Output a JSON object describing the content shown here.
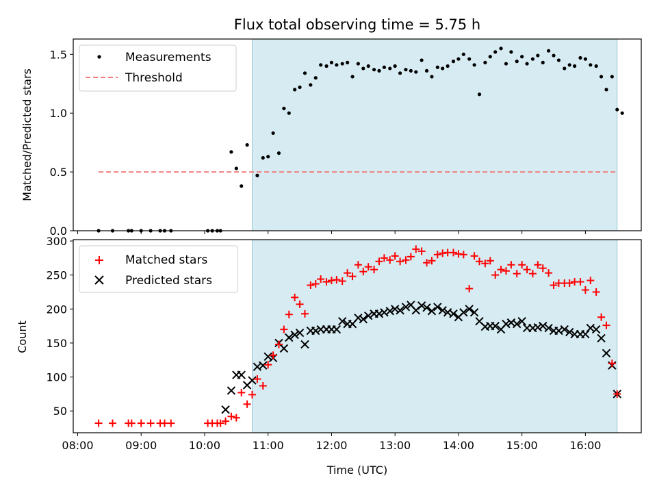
{
  "chart_data": [
    {
      "type": "scatter",
      "title": "Flux total observing time = 5.75 h",
      "ylabel": "Matched/Predicted stars",
      "xlabel": "",
      "ylim": [
        0,
        1.63
      ],
      "yticks": [
        0.0,
        0.5,
        1.0,
        1.5
      ],
      "ytick_labels": [
        "0.0",
        "0.5",
        "1.0",
        "1.5"
      ],
      "xlim_hours": [
        7.93,
        16.88
      ],
      "xtick_hours": [
        8,
        9,
        10,
        11,
        12,
        13,
        14,
        15,
        16
      ],
      "shaded_interval_hours": [
        10.75,
        16.5
      ],
      "legend": {
        "placement": "top-left",
        "entries": [
          "Measurements",
          "Threshold"
        ]
      },
      "threshold": {
        "name": "Threshold",
        "value": 0.5,
        "x_range_hours": [
          8.33,
          16.5
        ],
        "color": "#f08080"
      },
      "series": [
        {
          "name": "Measurements",
          "color": "#000000",
          "points": [
            [
              8.33,
              0.0
            ],
            [
              8.55,
              0.0
            ],
            [
              8.8,
              0.0
            ],
            [
              8.85,
              0.0
            ],
            [
              9.0,
              0.0
            ],
            [
              9.15,
              0.0
            ],
            [
              9.3,
              0.0
            ],
            [
              9.37,
              0.0
            ],
            [
              9.47,
              0.0
            ],
            [
              10.05,
              0.0
            ],
            [
              10.12,
              0.0
            ],
            [
              10.2,
              0.0
            ],
            [
              10.25,
              0.0
            ],
            [
              10.42,
              0.67
            ],
            [
              10.5,
              0.53
            ],
            [
              10.58,
              0.38
            ],
            [
              10.67,
              0.73
            ],
            [
              10.83,
              0.47
            ],
            [
              10.92,
              0.62
            ],
            [
              11.0,
              0.63
            ],
            [
              11.08,
              0.83
            ],
            [
              11.17,
              0.66
            ],
            [
              11.25,
              1.04
            ],
            [
              11.33,
              1.0
            ],
            [
              11.42,
              1.2
            ],
            [
              11.5,
              1.22
            ],
            [
              11.58,
              1.34
            ],
            [
              11.67,
              1.24
            ],
            [
              11.75,
              1.3
            ],
            [
              11.83,
              1.41
            ],
            [
              11.92,
              1.4
            ],
            [
              12.0,
              1.43
            ],
            [
              12.08,
              1.41
            ],
            [
              12.17,
              1.42
            ],
            [
              12.25,
              1.43
            ],
            [
              12.33,
              1.31
            ],
            [
              12.42,
              1.42
            ],
            [
              12.5,
              1.38
            ],
            [
              12.58,
              1.4
            ],
            [
              12.67,
              1.37
            ],
            [
              12.75,
              1.36
            ],
            [
              12.83,
              1.39
            ],
            [
              12.92,
              1.38
            ],
            [
              13.0,
              1.4
            ],
            [
              13.08,
              1.34
            ],
            [
              13.17,
              1.37
            ],
            [
              13.25,
              1.36
            ],
            [
              13.33,
              1.35
            ],
            [
              13.42,
              1.45
            ],
            [
              13.5,
              1.36
            ],
            [
              13.58,
              1.31
            ],
            [
              13.67,
              1.39
            ],
            [
              13.75,
              1.38
            ],
            [
              13.83,
              1.4
            ],
            [
              13.92,
              1.44
            ],
            [
              14.0,
              1.46
            ],
            [
              14.08,
              1.5
            ],
            [
              14.17,
              1.46
            ],
            [
              14.25,
              1.41
            ],
            [
              14.33,
              1.16
            ],
            [
              14.42,
              1.43
            ],
            [
              14.5,
              1.48
            ],
            [
              14.58,
              1.52
            ],
            [
              14.67,
              1.55
            ],
            [
              14.75,
              1.42
            ],
            [
              14.83,
              1.52
            ],
            [
              14.92,
              1.44
            ],
            [
              15.0,
              1.48
            ],
            [
              15.08,
              1.42
            ],
            [
              15.17,
              1.46
            ],
            [
              15.25,
              1.49
            ],
            [
              15.33,
              1.43
            ],
            [
              15.42,
              1.53
            ],
            [
              15.5,
              1.49
            ],
            [
              15.58,
              1.45
            ],
            [
              15.67,
              1.38
            ],
            [
              15.75,
              1.41
            ],
            [
              15.83,
              1.4
            ],
            [
              15.92,
              1.47
            ],
            [
              16.0,
              1.46
            ],
            [
              16.08,
              1.41
            ],
            [
              16.17,
              1.4
            ],
            [
              16.25,
              1.31
            ],
            [
              16.33,
              1.2
            ],
            [
              16.42,
              1.31
            ],
            [
              16.5,
              1.03
            ],
            [
              16.58,
              1.0
            ]
          ]
        }
      ]
    },
    {
      "type": "scatter",
      "title": "",
      "xlabel": "Time (UTC)",
      "ylabel": "Count",
      "ylim": [
        18,
        302
      ],
      "yticks": [
        50,
        100,
        150,
        200,
        250,
        300
      ],
      "ytick_labels": [
        "50",
        "100",
        "150",
        "200",
        "250",
        "300"
      ],
      "xlim_hours": [
        7.93,
        16.88
      ],
      "xtick_hours": [
        8,
        9,
        10,
        11,
        12,
        13,
        14,
        15,
        16
      ],
      "xtick_labels": [
        "08:00",
        "09:00",
        "10:00",
        "11:00",
        "12:00",
        "13:00",
        "14:00",
        "15:00",
        "16:00"
      ],
      "shaded_interval_hours": [
        10.75,
        16.5
      ],
      "legend": {
        "placement": "top-left",
        "entries": [
          "Matched stars",
          "Predicted stars"
        ]
      },
      "series": [
        {
          "name": "Matched stars",
          "marker": "plus",
          "color": "#ff0000",
          "points": [
            [
              8.33,
              32
            ],
            [
              8.55,
              32
            ],
            [
              8.8,
              32
            ],
            [
              8.85,
              32
            ],
            [
              9.0,
              32
            ],
            [
              9.15,
              32
            ],
            [
              9.3,
              32
            ],
            [
              9.37,
              32
            ],
            [
              9.47,
              32
            ],
            [
              10.05,
              32
            ],
            [
              10.12,
              32
            ],
            [
              10.2,
              32
            ],
            [
              10.25,
              32
            ],
            [
              10.33,
              35
            ],
            [
              10.42,
              42
            ],
            [
              10.5,
              40
            ],
            [
              10.58,
              77
            ],
            [
              10.67,
              60
            ],
            [
              10.75,
              74
            ],
            [
              10.83,
              97
            ],
            [
              10.92,
              87
            ],
            [
              11.0,
              118
            ],
            [
              11.08,
              132
            ],
            [
              11.17,
              148
            ],
            [
              11.25,
              170
            ],
            [
              11.33,
              192
            ],
            [
              11.42,
              217
            ],
            [
              11.5,
              207
            ],
            [
              11.58,
              193
            ],
            [
              11.67,
              235
            ],
            [
              11.75,
              237
            ],
            [
              11.83,
              244
            ],
            [
              11.92,
              240
            ],
            [
              12.0,
              242
            ],
            [
              12.08,
              243
            ],
            [
              12.17,
              241
            ],
            [
              12.25,
              253
            ],
            [
              12.33,
              248
            ],
            [
              12.42,
              265
            ],
            [
              12.5,
              255
            ],
            [
              12.58,
              262
            ],
            [
              12.67,
              258
            ],
            [
              12.75,
              270
            ],
            [
              12.83,
              275
            ],
            [
              12.92,
              272
            ],
            [
              13.0,
              278
            ],
            [
              13.08,
              270
            ],
            [
              13.17,
              272
            ],
            [
              13.25,
              277
            ],
            [
              13.33,
              288
            ],
            [
              13.42,
              285
            ],
            [
              13.5,
              268
            ],
            [
              13.58,
              271
            ],
            [
              13.67,
              280
            ],
            [
              13.75,
              282
            ],
            [
              13.83,
              283
            ],
            [
              13.92,
              283
            ],
            [
              14.0,
              281
            ],
            [
              14.08,
              280
            ],
            [
              14.17,
              230
            ],
            [
              14.25,
              278
            ],
            [
              14.33,
              270
            ],
            [
              14.42,
              267
            ],
            [
              14.5,
              271
            ],
            [
              14.58,
              250
            ],
            [
              14.67,
              258
            ],
            [
              14.75,
              256
            ],
            [
              14.83,
              265
            ],
            [
              14.92,
              252
            ],
            [
              15.0,
              265
            ],
            [
              15.08,
              258
            ],
            [
              15.17,
              252
            ],
            [
              15.25,
              265
            ],
            [
              15.33,
              260
            ],
            [
              15.42,
              253
            ],
            [
              15.5,
              235
            ],
            [
              15.58,
              238
            ],
            [
              15.67,
              238
            ],
            [
              15.75,
              238
            ],
            [
              15.83,
              240
            ],
            [
              15.92,
              240
            ],
            [
              16.0,
              228
            ],
            [
              16.08,
              242
            ],
            [
              16.17,
              225
            ],
            [
              16.25,
              188
            ],
            [
              16.33,
              176
            ],
            [
              16.42,
              120
            ],
            [
              16.5,
              75
            ]
          ]
        },
        {
          "name": "Predicted stars",
          "marker": "x",
          "color": "#000000",
          "points": [
            [
              10.33,
              52
            ],
            [
              10.42,
              80
            ],
            [
              10.5,
              103
            ],
            [
              10.58,
              103
            ],
            [
              10.67,
              88
            ],
            [
              10.75,
              95
            ],
            [
              10.83,
              115
            ],
            [
              10.92,
              117
            ],
            [
              11.0,
              130
            ],
            [
              11.08,
              128
            ],
            [
              11.17,
              150
            ],
            [
              11.25,
              142
            ],
            [
              11.33,
              158
            ],
            [
              11.42,
              162
            ],
            [
              11.5,
              165
            ],
            [
              11.58,
              148
            ],
            [
              11.67,
              168
            ],
            [
              11.75,
              168
            ],
            [
              11.83,
              170
            ],
            [
              11.92,
              170
            ],
            [
              12.0,
              170
            ],
            [
              12.08,
              170
            ],
            [
              12.17,
              182
            ],
            [
              12.25,
              178
            ],
            [
              12.33,
              178
            ],
            [
              12.42,
              187
            ],
            [
              12.5,
              185
            ],
            [
              12.58,
              190
            ],
            [
              12.67,
              193
            ],
            [
              12.75,
              193
            ],
            [
              12.83,
              195
            ],
            [
              12.92,
              197
            ],
            [
              13.0,
              200
            ],
            [
              13.08,
              198
            ],
            [
              13.17,
              203
            ],
            [
              13.25,
              206
            ],
            [
              13.33,
              198
            ],
            [
              13.42,
              205
            ],
            [
              13.5,
              202
            ],
            [
              13.58,
              197
            ],
            [
              13.67,
              203
            ],
            [
              13.75,
              198
            ],
            [
              13.83,
              195
            ],
            [
              13.92,
              193
            ],
            [
              14.0,
              188
            ],
            [
              14.08,
              195
            ],
            [
              14.17,
              200
            ],
            [
              14.25,
              195
            ],
            [
              14.33,
              182
            ],
            [
              14.42,
              174
            ],
            [
              14.5,
              175
            ],
            [
              14.58,
              175
            ],
            [
              14.67,
              170
            ],
            [
              14.75,
              178
            ],
            [
              14.83,
              180
            ],
            [
              14.92,
              178
            ],
            [
              15.0,
              182
            ],
            [
              15.08,
              172
            ],
            [
              15.17,
              172
            ],
            [
              15.25,
              173
            ],
            [
              15.33,
              175
            ],
            [
              15.42,
              172
            ],
            [
              15.5,
              168
            ],
            [
              15.58,
              168
            ],
            [
              15.67,
              170
            ],
            [
              15.75,
              166
            ],
            [
              15.83,
              163
            ],
            [
              15.92,
              163
            ],
            [
              16.0,
              163
            ],
            [
              16.08,
              172
            ],
            [
              16.17,
              170
            ],
            [
              16.25,
              157
            ],
            [
              16.33,
              135
            ],
            [
              16.42,
              117
            ],
            [
              16.5,
              75
            ]
          ]
        }
      ]
    }
  ]
}
